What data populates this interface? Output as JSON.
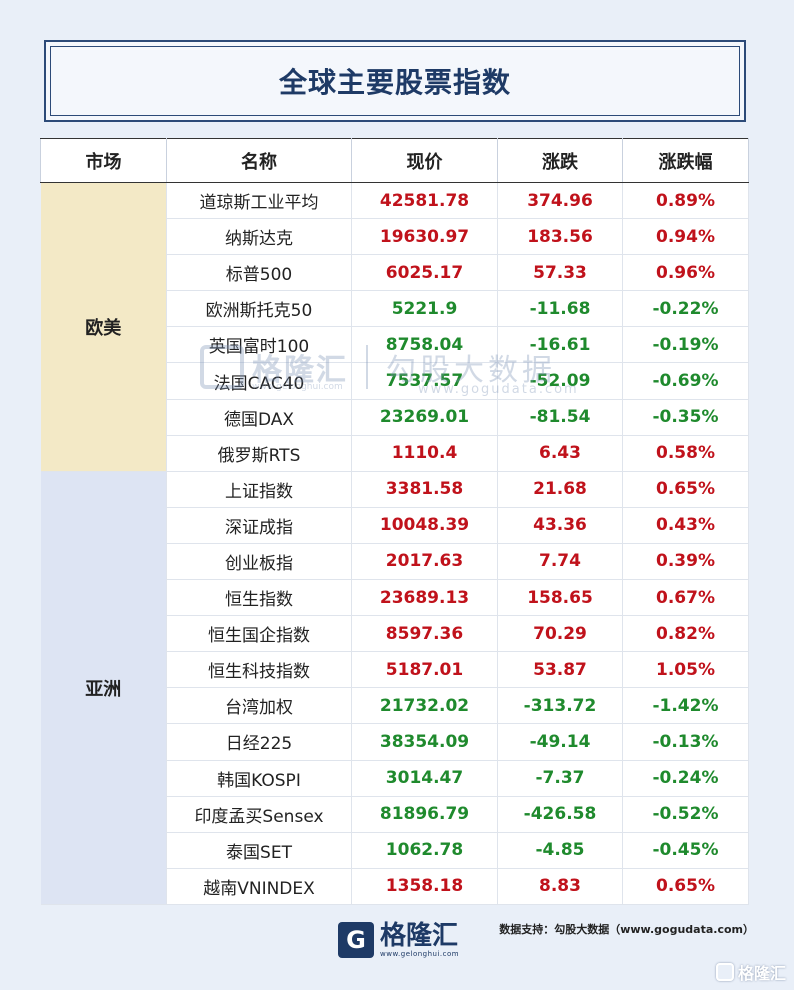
{
  "title": "全球主要股票指数",
  "headers": [
    "市场",
    "名称",
    "现价",
    "涨跌",
    "涨跌幅"
  ],
  "regions": {
    "europe_america": "欧美",
    "asia": "亚洲"
  },
  "colors": {
    "up": "#c0121b",
    "down": "#1f8a2d",
    "eu_bg": "#f3e9c6",
    "asia_bg": "#dde4f3"
  },
  "rows": [
    {
      "name": "道琼斯工业平均",
      "price": "42581.78",
      "change": "374.96",
      "pct": "0.89%",
      "dir": "up"
    },
    {
      "name": "纳斯达克",
      "price": "19630.97",
      "change": "183.56",
      "pct": "0.94%",
      "dir": "up"
    },
    {
      "name": "标普500",
      "price": "6025.17",
      "change": "57.33",
      "pct": "0.96%",
      "dir": "up"
    },
    {
      "name": "欧洲斯托克50",
      "price": "5221.9",
      "change": "-11.68",
      "pct": "-0.22%",
      "dir": "down"
    },
    {
      "name": "英国富时100",
      "price": "8758.04",
      "change": "-16.61",
      "pct": "-0.19%",
      "dir": "down"
    },
    {
      "name": "法国CAC40",
      "price": "7537.57",
      "change": "-52.09",
      "pct": "-0.69%",
      "dir": "down"
    },
    {
      "name": "德国DAX",
      "price": "23269.01",
      "change": "-81.54",
      "pct": "-0.35%",
      "dir": "down"
    },
    {
      "name": "俄罗斯RTS",
      "price": "1110.4",
      "change": "6.43",
      "pct": "0.58%",
      "dir": "up"
    },
    {
      "name": "上证指数",
      "price": "3381.58",
      "change": "21.68",
      "pct": "0.65%",
      "dir": "up"
    },
    {
      "name": "深证成指",
      "price": "10048.39",
      "change": "43.36",
      "pct": "0.43%",
      "dir": "up"
    },
    {
      "name": "创业板指",
      "price": "2017.63",
      "change": "7.74",
      "pct": "0.39%",
      "dir": "up"
    },
    {
      "name": "恒生指数",
      "price": "23689.13",
      "change": "158.65",
      "pct": "0.67%",
      "dir": "up"
    },
    {
      "name": "恒生国企指数",
      "price": "8597.36",
      "change": "70.29",
      "pct": "0.82%",
      "dir": "up"
    },
    {
      "name": "恒生科技指数",
      "price": "5187.01",
      "change": "53.87",
      "pct": "1.05%",
      "dir": "up"
    },
    {
      "name": "台湾加权",
      "price": "21732.02",
      "change": "-313.72",
      "pct": "-1.42%",
      "dir": "down"
    },
    {
      "name": "日经225",
      "price": "38354.09",
      "change": "-49.14",
      "pct": "-0.13%",
      "dir": "down"
    },
    {
      "name": "韩国KOSPI",
      "price": "3014.47",
      "change": "-7.37",
      "pct": "-0.24%",
      "dir": "down"
    },
    {
      "name": "印度孟买Sensex",
      "price": "81896.79",
      "change": "-426.58",
      "pct": "-0.52%",
      "dir": "down"
    },
    {
      "name": "泰国SET",
      "price": "1062.78",
      "change": "-4.85",
      "pct": "-0.45%",
      "dir": "down"
    },
    {
      "name": "越南VNINDEX",
      "price": "1358.18",
      "change": "8.83",
      "pct": "0.65%",
      "dir": "up"
    }
  ],
  "watermark": {
    "brand": "格隆汇",
    "brand_url": "www.gelonghui.com",
    "partner": "勾股大数据",
    "partner_url": "www.gogudata.com"
  },
  "footer": {
    "source": "数据支持：勾股大数据（www.gogudata.com）",
    "logo_glyph": "G",
    "logo_name": "格隆汇",
    "logo_url": "www.gelonghui.com",
    "corner_text": "格隆汇"
  }
}
